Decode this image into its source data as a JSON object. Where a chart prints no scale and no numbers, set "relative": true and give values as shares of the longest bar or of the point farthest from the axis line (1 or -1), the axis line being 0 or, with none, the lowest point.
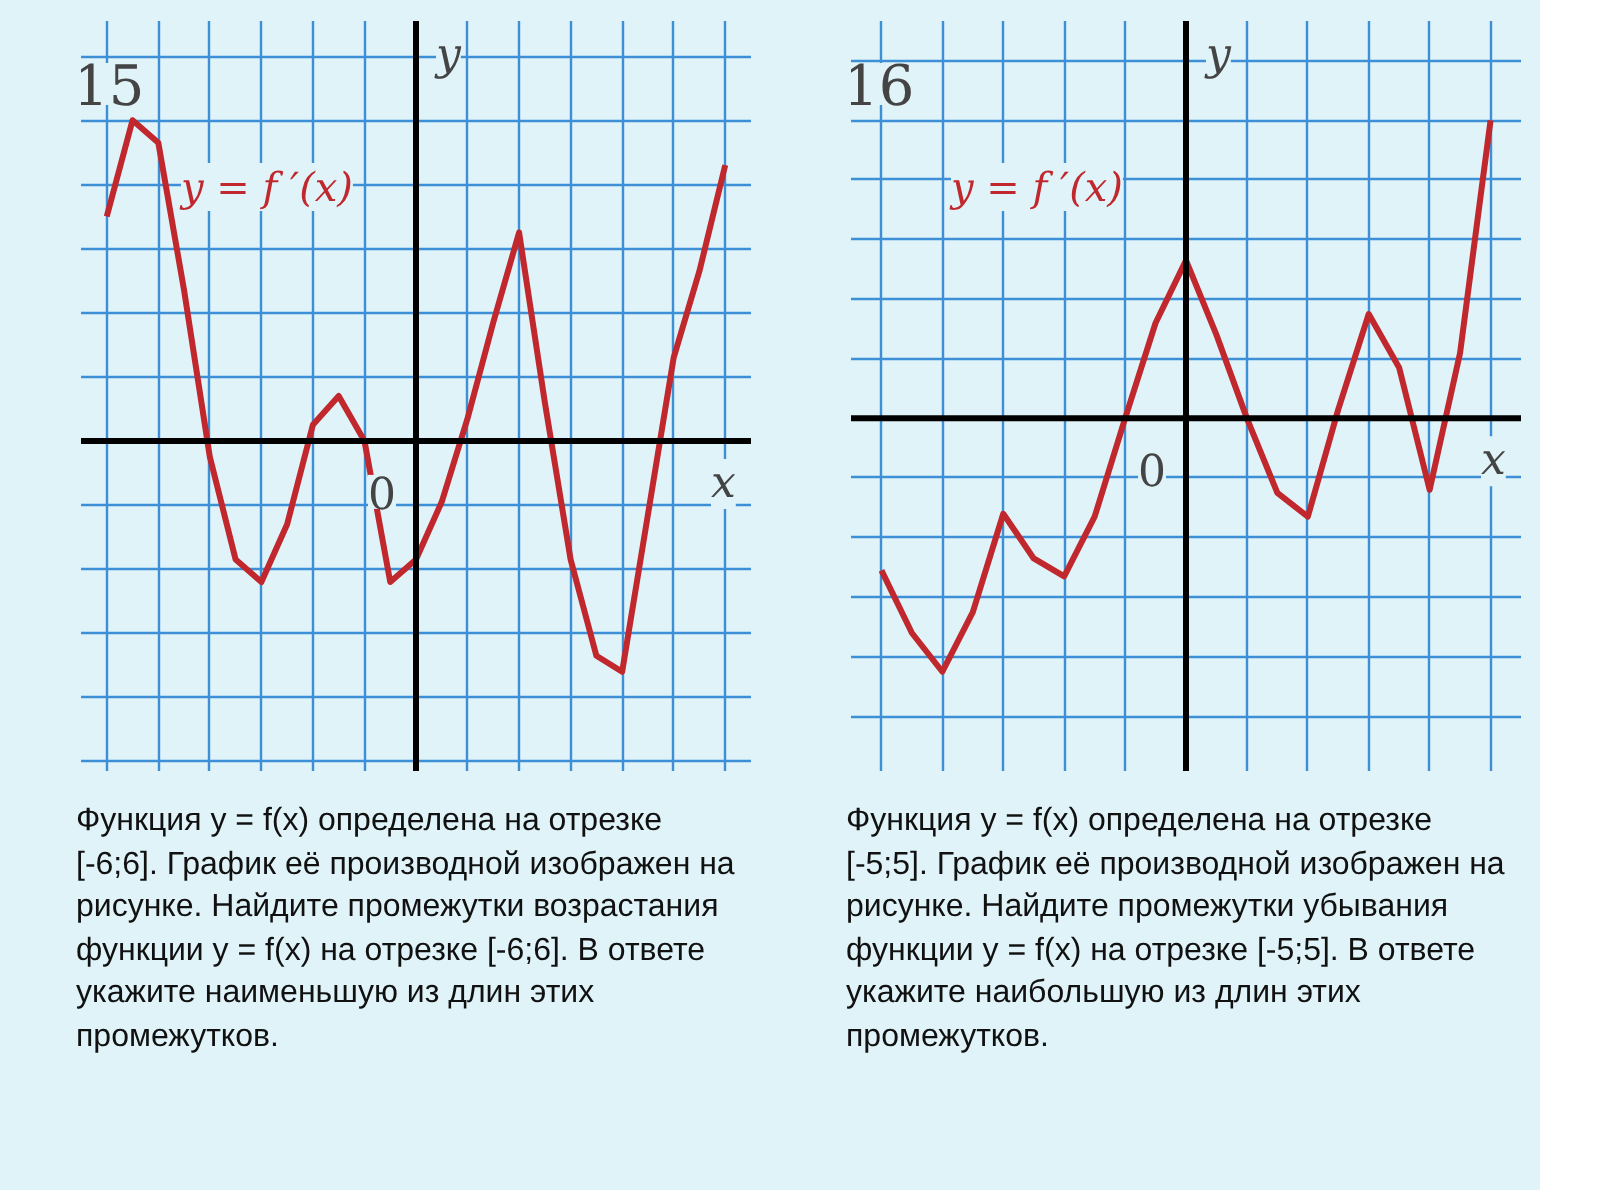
{
  "chart_data": [
    {
      "type": "line",
      "relative": true,
      "xlabel": "x",
      "ylabel": "y",
      "grid": true,
      "tick_labels": false,
      "legend": false,
      "categories": [
        null,
        null,
        null,
        null,
        null,
        null,
        null,
        null,
        null,
        null,
        null,
        null,
        null,
        null,
        null,
        null,
        null,
        null,
        null,
        null,
        null,
        null,
        null,
        null,
        null
      ],
      "series": [
        {
          "name": "y = f ′(x)",
          "color": "#c0282d",
          "values": [
            0.7,
            1,
            0.93,
            0.47,
            -0.05,
            -0.37,
            -0.44,
            -0.26,
            0.05,
            0.14,
            0,
            -0.44,
            -0.37,
            -0.19,
            0.07,
            0.37,
            0.65,
            0.12,
            -0.37,
            -0.67,
            -0.72,
            -0.23,
            0.26,
            0.53,
            0.86
          ]
        }
      ],
      "annotations": [
        "15",
        "0",
        "Функция y = f(x) определена на отрезке [-6;6]. График её производной изображен на рисунке. Найдите промежутки возрастания функции y = f(x) на отрезке [-6;6]. В ответе укажите наименьшую из длин этих промежутков."
      ]
    },
    {
      "type": "line",
      "relative": true,
      "xlabel": "x",
      "ylabel": "y",
      "grid": true,
      "tick_labels": false,
      "legend": false,
      "categories": [
        null,
        null,
        null,
        null,
        null,
        null,
        null,
        null,
        null,
        null,
        null,
        null,
        null,
        null,
        null,
        null,
        null,
        null,
        null,
        null,
        null
      ],
      "series": [
        {
          "name": "y = f ′(x)",
          "color": "#c0282d",
          "values": [
            -0.51,
            -0.72,
            -0.85,
            -0.65,
            -0.32,
            -0.47,
            -0.53,
            -0.33,
            0,
            0.32,
            0.53,
            0.28,
            0,
            -0.25,
            -0.33,
            0.03,
            0.35,
            0.17,
            -0.24,
            0.22,
            1
          ]
        }
      ],
      "annotations": [
        "16",
        "0",
        "Функция y = f(x) определена на отрезке [-5;5]. График её производной изображен на рисунке. Найдите промежутки убывания функции y = f(x) на отрезке [-5;5]. В ответе укажите наибольшую из длин этих промежутков."
      ]
    }
  ]
}
